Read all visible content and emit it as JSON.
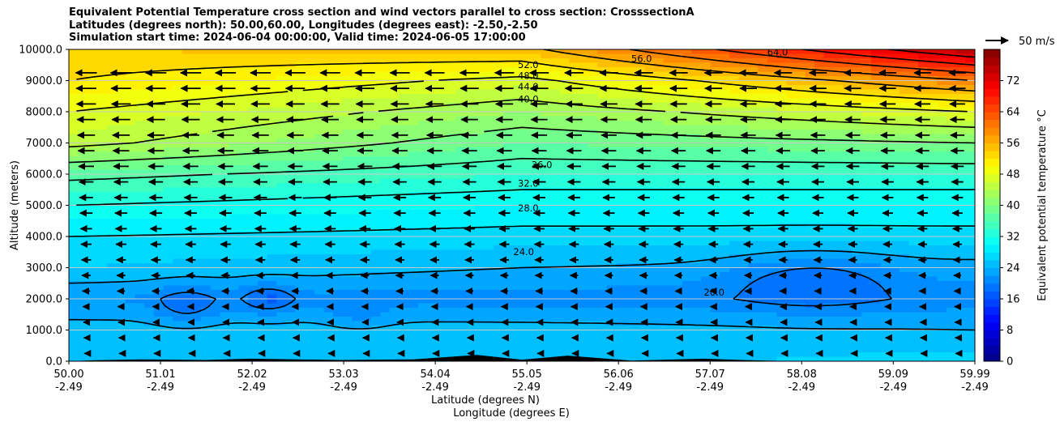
{
  "chart_data": {
    "type": "contourf",
    "title_lines": [
      "Equivalent Potential Temperature cross section and wind vectors parallel to cross section: CrosssectionA",
      "Latitudes (degrees north): 50.00,60.00, Longitudes (degrees east): -2.50,-2.50",
      "Simulation start time: 2024-06-04 00:00:00, Valid time: 2024-06-05 17:00:00"
    ],
    "ylabel": "Altitude (meters)",
    "xlabel_lines": [
      "Latitude (degrees N)",
      "Longitude (degrees E)"
    ],
    "ylim": [
      0,
      10000
    ],
    "xlim": [
      50.0,
      59.99
    ],
    "y_ticks": [
      "0.0",
      "1000.0",
      "2000.0",
      "3000.0",
      "4000.0",
      "5000.0",
      "6000.0",
      "7000.0",
      "8000.0",
      "9000.0",
      "10000.0"
    ],
    "y_tick_values": [
      0,
      1000,
      2000,
      3000,
      4000,
      5000,
      6000,
      7000,
      8000,
      9000,
      10000
    ],
    "x_ticks": [
      {
        "lat": "50.00",
        "lon": "-2.49"
      },
      {
        "lat": "51.01",
        "lon": "-2.49"
      },
      {
        "lat": "52.02",
        "lon": "-2.49"
      },
      {
        "lat": "53.03",
        "lon": "-2.49"
      },
      {
        "lat": "54.04",
        "lon": "-2.49"
      },
      {
        "lat": "55.05",
        "lon": "-2.49"
      },
      {
        "lat": "56.06",
        "lon": "-2.49"
      },
      {
        "lat": "57.07",
        "lon": "-2.49"
      },
      {
        "lat": "58.08",
        "lon": "-2.49"
      },
      {
        "lat": "59.09",
        "lon": "-2.49"
      },
      {
        "lat": "59.99",
        "lon": "-2.49"
      }
    ],
    "grid": "horizontal",
    "colorbar": {
      "label": "Equivalent potential temperature $^\\circ$C",
      "ticks": [
        "0",
        "8",
        "16",
        "24",
        "32",
        "40",
        "48",
        "56",
        "64",
        "72"
      ],
      "tick_values": [
        0,
        8,
        16,
        24,
        32,
        40,
        48,
        56,
        64,
        72
      ],
      "range": [
        0,
        80
      ],
      "colormap": "jet"
    },
    "wind_key": {
      "label": "50 m/s",
      "direction": "right"
    },
    "contour_labels": [
      "52.0",
      "48.0",
      "44.0",
      "40.0",
      "36.0",
      "32.0",
      "28.0",
      "24.0",
      "20.0",
      "56.0",
      "64.0"
    ],
    "theta_e_profile": {
      "description_free": true,
      "heights_m": [
        0,
        1000,
        2000,
        3000,
        4000,
        5000,
        6000,
        7000,
        8000,
        9000,
        10000
      ],
      "values_at_lat50": [
        26,
        25,
        22,
        26,
        28,
        32,
        37,
        45,
        48,
        52,
        54
      ],
      "values_at_lat55": [
        25,
        25,
        21,
        24,
        27,
        30,
        34,
        38,
        42,
        47,
        55
      ],
      "values_at_lat60": [
        27,
        24,
        21,
        23,
        27,
        30,
        34,
        40,
        48,
        60,
        76
      ]
    },
    "colors": {
      "terrain": "#000000",
      "grid": "#c8c8c8",
      "contour": "#000000"
    }
  }
}
